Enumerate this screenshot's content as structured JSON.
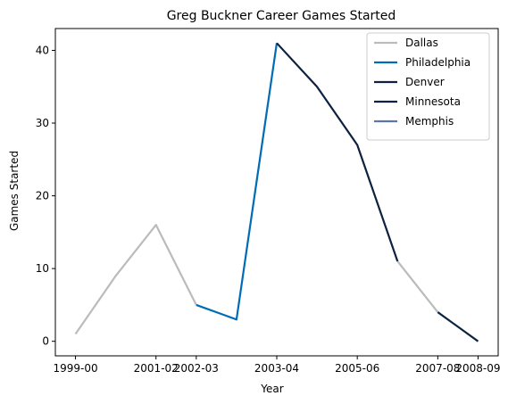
{
  "chart_data": {
    "type": "line",
    "title": "Greg Buckner Career Games Started",
    "xlabel": "Year",
    "ylabel": "Games Started",
    "ylim": [
      -2,
      43
    ],
    "yticks": [
      0,
      10,
      20,
      30,
      40
    ],
    "x_tick_labels": [
      "1999-00",
      "2001-02",
      "2002-03",
      "2003-04",
      "2005-06",
      "2007-08",
      "2008-09"
    ],
    "grid": false,
    "legend_position": "top-right",
    "series": [
      {
        "name": "Dallas",
        "color": "#BBBBBB",
        "points": [
          [
            0,
            1
          ],
          [
            1,
            9
          ],
          [
            2,
            16
          ],
          [
            3,
            5
          ]
        ]
      },
      {
        "name": "Philadelphia",
        "color": "#006BB6",
        "points": [
          [
            3,
            5
          ],
          [
            4,
            3
          ],
          [
            5,
            41
          ]
        ]
      },
      {
        "name": "Denver",
        "color": "#0E2240",
        "points": [
          [
            5,
            41
          ],
          [
            6,
            35
          ],
          [
            7,
            27
          ],
          [
            8,
            11
          ]
        ]
      },
      {
        "name": "Minnesota",
        "color": "#0C2340",
        "points": [
          [
            9,
            4
          ],
          [
            10,
            0
          ]
        ]
      },
      {
        "name": "Memphis",
        "color": "#5D76A9",
        "points": []
      }
    ],
    "extra_segments": [
      {
        "color": "#BBBBBB",
        "points": [
          [
            8,
            11
          ],
          [
            9,
            4
          ]
        ]
      }
    ],
    "x_tick_positions": [
      0,
      2,
      3,
      5,
      7,
      9,
      10
    ],
    "xlim": [
      -0.5,
      10.5
    ]
  }
}
